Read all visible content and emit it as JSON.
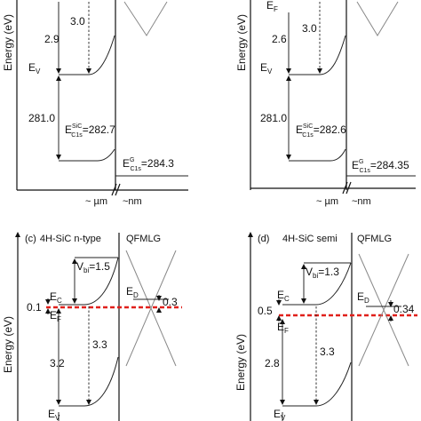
{
  "panels": {
    "a": {
      "ylabel": "Energy (eV)",
      "gap_left_value": "2.9",
      "gap_right_value": "3.0",
      "ev_label": "E",
      "ev_sub": "V",
      "core_value": "281.0",
      "c1s_sic_label": "E",
      "c1s_sic_sup": "SiC",
      "c1s_sic_sub": "C1s",
      "c1s_sic_value": "=282.7",
      "c1s_g_label": "E",
      "c1s_g_sup": "G",
      "c1s_g_sub": "C1s",
      "c1s_g_value": "=284.3",
      "xscale_left": "~ µm",
      "xscale_right": "~nm"
    },
    "b": {
      "ylabel": "Energy (eV)",
      "ef_label": "E",
      "ef_sub": "F",
      "gap_left_value": "2.6",
      "gap_right_value": "3.0",
      "ev_label": "E",
      "ev_sub": "V",
      "core_value": "281.0",
      "c1s_sic_label": "E",
      "c1s_sic_sup": "SiC",
      "c1s_sic_sub": "C1s",
      "c1s_sic_value": "=282.6",
      "c1s_g_label": "E",
      "c1s_g_sup": "G",
      "c1s_g_sub": "C1s",
      "c1s_g_value": "=284.35",
      "xscale_left": "~ µm",
      "xscale_right": "~nm"
    },
    "c": {
      "tag": "(c)",
      "title_left": "4H-SiC n-type",
      "title_right": "QFMLG",
      "ylabel": "Energy (eV)",
      "vbi_label": "V",
      "vbi_sub": "bi",
      "vbi_value": "=1.5",
      "ec_label": "E",
      "ec_sub": "C",
      "ef_label": "E",
      "ef_sub": "F",
      "ed_label": "E",
      "ed_sub": "D",
      "ed_value": "0.3",
      "ec_ef_value": "0.1",
      "gap_right_value": "3.3",
      "gap_left_value": "3.2",
      "ev_label": "E",
      "ev_sub": "V"
    },
    "d": {
      "tag": "(d)",
      "title_left": "4H-SiC semi",
      "title_right": "QFMLG",
      "ylabel": "Energy (eV)",
      "vbi_label": "V",
      "vbi_sub": "bi",
      "vbi_value": "=1.3",
      "ec_label": "E",
      "ec_sub": "C",
      "ef_label": "E",
      "ef_sub": "F",
      "ed_label": "E",
      "ed_sub": "D",
      "ed_value": "0.34",
      "ec_ef_value": "0.5",
      "gap_right_value": "3.3",
      "gap_left_value": "2.8",
      "ev_label": "E",
      "ev_sub": "V"
    }
  },
  "colors": {
    "fermi_line": "#e0201b",
    "cone": "#888888",
    "ink": "#111111"
  }
}
